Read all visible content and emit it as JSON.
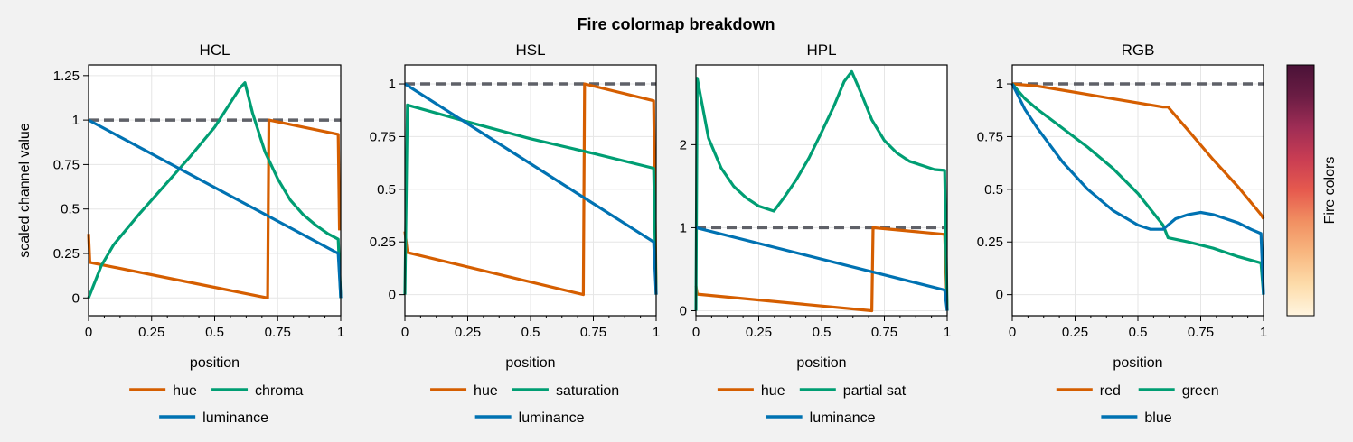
{
  "figure": {
    "suptitle": "Fire colormap breakdown",
    "colorbar_label": "Fire colors",
    "colors": {
      "orange": "#d55e00",
      "green": "#009e73",
      "blue": "#0072b2",
      "reference": "#5f6168",
      "colormap": [
        "#fff5e0",
        "#fddcaa",
        "#f8b780",
        "#f19062",
        "#e65a4e",
        "#c93d53",
        "#9f2d55",
        "#6b1d44",
        "#4a1237"
      ]
    }
  },
  "chart_data": [
    {
      "type": "line",
      "title": "HCL",
      "xlabel": "position",
      "ylabel": "scaled channel value",
      "xlim": [
        0,
        1
      ],
      "ylim": [
        -0.1,
        1.31
      ],
      "xticks": [
        0,
        0.25,
        0.5,
        0.75,
        1
      ],
      "xtick_labels": [
        "0",
        "0.25",
        "0.5",
        "0.75",
        "1"
      ],
      "yticks": [
        0,
        0.25,
        0.5,
        0.75,
        1,
        1.25
      ],
      "ytick_labels": [
        "0",
        "0.25",
        "0.5",
        "0.75",
        "1",
        "1.25"
      ],
      "grid": true,
      "reference_line": {
        "x": [
          0,
          1
        ],
        "y": [
          1,
          1
        ]
      },
      "series": [
        {
          "name": "hue",
          "color": "orange",
          "x": [
            0,
            0.005,
            0.71,
            0.715,
            0.99,
            0.995
          ],
          "y": [
            0.36,
            0.2,
            0.0,
            1.0,
            0.92,
            0.38
          ]
        },
        {
          "name": "chroma",
          "color": "green",
          "x": [
            0,
            0.05,
            0.1,
            0.2,
            0.3,
            0.4,
            0.5,
            0.6,
            0.62,
            0.65,
            0.7,
            0.75,
            0.8,
            0.85,
            0.9,
            0.95,
            0.99,
            1.0
          ],
          "y": [
            0.0,
            0.18,
            0.3,
            0.47,
            0.63,
            0.79,
            0.96,
            1.18,
            1.21,
            1.04,
            0.82,
            0.67,
            0.55,
            0.47,
            0.41,
            0.36,
            0.33,
            0.0
          ]
        },
        {
          "name": "luminance",
          "color": "blue",
          "x": [
            0,
            0.99,
            1.0
          ],
          "y": [
            1.0,
            0.25,
            0.0
          ]
        }
      ],
      "legend": {
        "position": "bottom",
        "rows": [
          [
            "hue",
            "chroma"
          ],
          [
            "luminance"
          ]
        ]
      }
    },
    {
      "type": "line",
      "title": "HSL",
      "xlabel": "position",
      "ylabel": "",
      "xlim": [
        0,
        1
      ],
      "ylim": [
        -0.1,
        1.09
      ],
      "xticks": [
        0,
        0.25,
        0.5,
        0.75,
        1
      ],
      "xtick_labels": [
        "0",
        "0.25",
        "0.5",
        "0.75",
        "1"
      ],
      "yticks": [
        0,
        0.25,
        0.5,
        0.75,
        1
      ],
      "ytick_labels": [
        "0",
        "0.25",
        "0.5",
        "0.75",
        "1"
      ],
      "grid": true,
      "reference_line": {
        "x": [
          0,
          1
        ],
        "y": [
          1,
          1
        ]
      },
      "series": [
        {
          "name": "hue",
          "color": "orange",
          "x": [
            0,
            0.01,
            0.71,
            0.715,
            0.99,
            1.0
          ],
          "y": [
            0.3,
            0.2,
            0.0,
            1.0,
            0.92,
            0.0
          ]
        },
        {
          "name": "saturation",
          "color": "green",
          "x": [
            0,
            0.01,
            0.25,
            0.5,
            0.75,
            0.99,
            1.0
          ],
          "y": [
            0.0,
            0.9,
            0.82,
            0.74,
            0.67,
            0.6,
            0.0
          ]
        },
        {
          "name": "luminance",
          "color": "blue",
          "x": [
            0,
            0.99,
            1.0
          ],
          "y": [
            1.0,
            0.25,
            0.0
          ]
        }
      ],
      "legend": {
        "position": "bottom",
        "rows": [
          [
            "hue",
            "saturation"
          ],
          [
            "luminance"
          ]
        ]
      }
    },
    {
      "type": "line",
      "title": "HPL",
      "xlabel": "position",
      "ylabel": "",
      "xlim": [
        0,
        1
      ],
      "ylim": [
        -0.06,
        2.96
      ],
      "xticks": [
        0,
        0.25,
        0.5,
        0.75,
        1
      ],
      "xtick_labels": [
        "0",
        "0.25",
        "0.5",
        "0.75",
        "1"
      ],
      "yticks": [
        0,
        1,
        2
      ],
      "ytick_labels": [
        "0",
        "1",
        "2"
      ],
      "grid": true,
      "reference_line": {
        "x": [
          0,
          1
        ],
        "y": [
          1,
          1
        ]
      },
      "series": [
        {
          "name": "hue",
          "color": "orange",
          "x": [
            0,
            0.005,
            0.7,
            0.705,
            0.99,
            1.0
          ],
          "y": [
            0.3,
            0.2,
            0.0,
            1.0,
            0.92,
            0.0
          ]
        },
        {
          "name": "partial sat",
          "color": "green",
          "x": [
            0,
            0.005,
            0.05,
            0.1,
            0.15,
            0.2,
            0.25,
            0.31,
            0.35,
            0.4,
            0.45,
            0.5,
            0.55,
            0.59,
            0.62,
            0.66,
            0.7,
            0.75,
            0.8,
            0.85,
            0.9,
            0.95,
            0.99,
            1.0
          ],
          "y": [
            0.0,
            2.8,
            2.08,
            1.72,
            1.5,
            1.36,
            1.26,
            1.2,
            1.36,
            1.58,
            1.84,
            2.15,
            2.47,
            2.76,
            2.88,
            2.6,
            2.3,
            2.05,
            1.9,
            1.8,
            1.75,
            1.7,
            1.69,
            0.0
          ]
        },
        {
          "name": "luminance",
          "color": "blue",
          "x": [
            0,
            0.99,
            1.0
          ],
          "y": [
            1.0,
            0.25,
            0.0
          ]
        }
      ],
      "legend": {
        "position": "bottom",
        "rows": [
          [
            "hue",
            "partial sat"
          ],
          [
            "luminance"
          ]
        ]
      }
    },
    {
      "type": "line",
      "title": "RGB",
      "xlabel": "position",
      "ylabel": "",
      "xlim": [
        0,
        1
      ],
      "ylim": [
        -0.1,
        1.09
      ],
      "xticks": [
        0,
        0.25,
        0.5,
        0.75,
        1
      ],
      "xtick_labels": [
        "0",
        "0.25",
        "0.5",
        "0.75",
        "1"
      ],
      "yticks": [
        0,
        0.25,
        0.5,
        0.75,
        1
      ],
      "ytick_labels": [
        "0",
        "0.25",
        "0.5",
        "0.75",
        "1"
      ],
      "grid": true,
      "reference_line": {
        "x": [
          0,
          1
        ],
        "y": [
          1,
          1
        ]
      },
      "series": [
        {
          "name": "red",
          "color": "orange",
          "x": [
            0,
            0.1,
            0.2,
            0.3,
            0.4,
            0.5,
            0.6,
            0.62,
            0.7,
            0.8,
            0.9,
            0.99,
            1.0
          ],
          "y": [
            1.0,
            0.99,
            0.97,
            0.95,
            0.93,
            0.91,
            0.89,
            0.89,
            0.78,
            0.64,
            0.51,
            0.38,
            0.36
          ]
        },
        {
          "name": "green",
          "color": "green",
          "x": [
            0,
            0.05,
            0.1,
            0.2,
            0.3,
            0.4,
            0.5,
            0.6,
            0.62,
            0.7,
            0.8,
            0.9,
            0.99,
            1.0
          ],
          "y": [
            1.0,
            0.93,
            0.88,
            0.79,
            0.7,
            0.6,
            0.48,
            0.33,
            0.27,
            0.25,
            0.22,
            0.18,
            0.15,
            0.0
          ]
        },
        {
          "name": "blue",
          "color": "blue",
          "x": [
            0,
            0.05,
            0.1,
            0.2,
            0.3,
            0.4,
            0.5,
            0.55,
            0.6,
            0.65,
            0.7,
            0.75,
            0.8,
            0.85,
            0.9,
            0.95,
            0.99,
            1.0
          ],
          "y": [
            1.0,
            0.88,
            0.79,
            0.63,
            0.5,
            0.4,
            0.33,
            0.31,
            0.31,
            0.36,
            0.38,
            0.39,
            0.38,
            0.36,
            0.34,
            0.31,
            0.29,
            0.0
          ]
        }
      ],
      "legend": {
        "position": "bottom",
        "rows": [
          [
            "red",
            "green"
          ],
          [
            "blue"
          ]
        ]
      }
    }
  ]
}
